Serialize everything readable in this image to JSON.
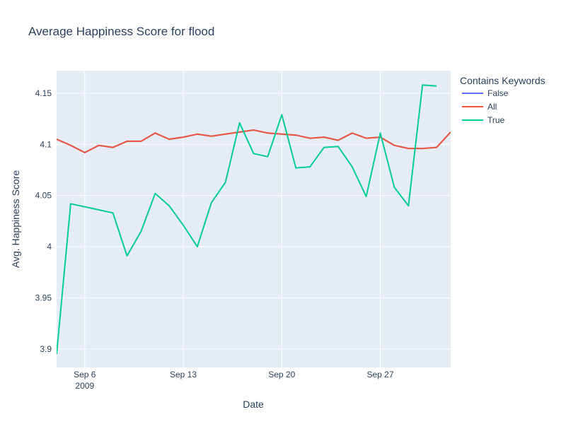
{
  "chart_data": {
    "type": "line",
    "title": "Average Happiness Score for flood",
    "xlabel": "Date",
    "ylabel": "Avg. Happiness Score",
    "x_tick_labels": [
      "Sep 6",
      "Sep 13",
      "Sep 20",
      "Sep 27"
    ],
    "x_tick_sublabel": "2009",
    "x_tick_dates": [
      "2009-09-06",
      "2009-09-13",
      "2009-09-20",
      "2009-09-27"
    ],
    "xlim": [
      "2009-09-04",
      "2009-10-02"
    ],
    "y_tick_labels": [
      "3.9",
      "3.95",
      "4",
      "4.05",
      "4.1",
      "4.15"
    ],
    "y_ticks": [
      3.9,
      3.95,
      4.0,
      4.05,
      4.1,
      4.15
    ],
    "ylim": [
      3.882,
      4.172
    ],
    "grid": true,
    "legend": {
      "title": "Contains Keywords",
      "position": "top-right, outside plot",
      "entries": [
        "False",
        "All",
        "True"
      ]
    },
    "series": [
      {
        "name": "False",
        "color": "#636efa",
        "x": [
          "2009-09-04",
          "2009-09-05",
          "2009-09-06",
          "2009-09-07",
          "2009-09-08",
          "2009-09-09",
          "2009-09-10",
          "2009-09-11",
          "2009-09-12",
          "2009-09-13",
          "2009-09-14",
          "2009-09-15",
          "2009-09-16",
          "2009-09-17",
          "2009-09-18",
          "2009-09-19",
          "2009-09-20",
          "2009-09-21",
          "2009-09-22",
          "2009-09-23",
          "2009-09-24",
          "2009-09-25",
          "2009-09-26",
          "2009-09-27",
          "2009-09-28",
          "2009-09-29",
          "2009-09-30",
          "2009-10-01",
          "2009-10-02"
        ],
        "y": [
          4.105,
          4.099,
          4.092,
          4.099,
          4.097,
          4.103,
          4.103,
          4.111,
          4.105,
          4.107,
          4.11,
          4.108,
          4.11,
          4.112,
          4.114,
          4.111,
          4.11,
          4.109,
          4.106,
          4.107,
          4.104,
          4.111,
          4.106,
          4.107,
          4.099,
          4.096,
          4.096,
          4.097,
          4.112
        ]
      },
      {
        "name": "All",
        "color": "#ef553b",
        "x": [
          "2009-09-04",
          "2009-09-05",
          "2009-09-06",
          "2009-09-07",
          "2009-09-08",
          "2009-09-09",
          "2009-09-10",
          "2009-09-11",
          "2009-09-12",
          "2009-09-13",
          "2009-09-14",
          "2009-09-15",
          "2009-09-16",
          "2009-09-17",
          "2009-09-18",
          "2009-09-19",
          "2009-09-20",
          "2009-09-21",
          "2009-09-22",
          "2009-09-23",
          "2009-09-24",
          "2009-09-25",
          "2009-09-26",
          "2009-09-27",
          "2009-09-28",
          "2009-09-29",
          "2009-09-30",
          "2009-10-01",
          "2009-10-02"
        ],
        "y": [
          4.105,
          4.099,
          4.092,
          4.099,
          4.097,
          4.103,
          4.103,
          4.111,
          4.105,
          4.107,
          4.11,
          4.108,
          4.11,
          4.112,
          4.114,
          4.111,
          4.11,
          4.109,
          4.106,
          4.107,
          4.104,
          4.111,
          4.106,
          4.107,
          4.099,
          4.096,
          4.096,
          4.097,
          4.112
        ]
      },
      {
        "name": "True",
        "color": "#00cc96",
        "x": [
          "2009-09-04",
          "2009-09-05",
          "2009-09-08",
          "2009-09-09",
          "2009-09-10",
          "2009-09-11",
          "2009-09-12",
          "2009-09-13",
          "2009-09-14",
          "2009-09-15",
          "2009-09-16",
          "2009-09-17",
          "2009-09-18",
          "2009-09-19",
          "2009-09-20",
          "2009-09-21",
          "2009-09-22",
          "2009-09-23",
          "2009-09-24",
          "2009-09-25",
          "2009-09-26",
          "2009-09-27",
          "2009-09-28",
          "2009-09-29",
          "2009-09-30",
          "2009-10-01"
        ],
        "y": [
          3.895,
          4.042,
          4.033,
          3.991,
          4.015,
          4.052,
          4.04,
          4.021,
          4.0,
          4.043,
          4.063,
          4.121,
          4.091,
          4.088,
          4.129,
          4.077,
          4.078,
          4.097,
          4.098,
          4.078,
          4.049,
          4.111,
          4.058,
          4.04,
          4.158,
          4.157
        ]
      }
    ]
  }
}
